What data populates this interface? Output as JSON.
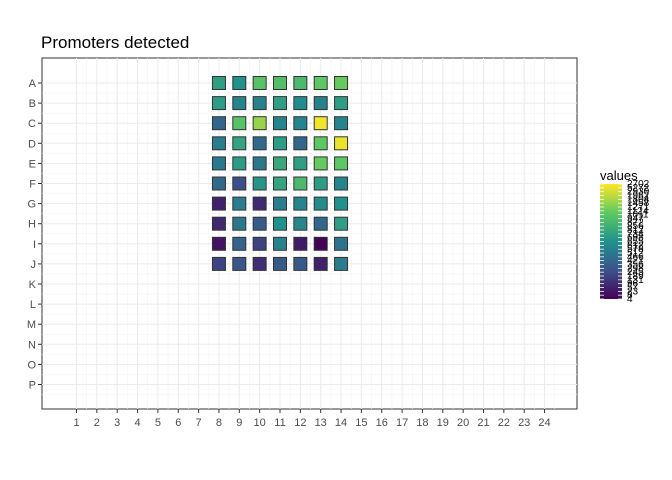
{
  "chart_data": {
    "type": "heatmap",
    "title": "Promoters detected",
    "xlabel": "",
    "ylabel": "",
    "columns": [
      "1",
      "2",
      "3",
      "4",
      "5",
      "6",
      "7",
      "8",
      "9",
      "10",
      "11",
      "12",
      "13",
      "14",
      "15",
      "16",
      "17",
      "18",
      "19",
      "20",
      "21",
      "22",
      "23",
      "24"
    ],
    "rows": [
      "A",
      "B",
      "C",
      "D",
      "E",
      "F",
      "G",
      "H",
      "I",
      "J",
      "K",
      "L",
      "M",
      "N",
      "O",
      "P"
    ],
    "grid": true,
    "legend_position": "right",
    "legend": {
      "title": "values",
      "labels": [
        "2702",
        "5272",
        "2930",
        "1962",
        "1804",
        "1458",
        "1271",
        "1124",
        "1011",
        "947",
        "872",
        "856",
        "812",
        "734",
        "698",
        "655",
        "612",
        "578",
        "512",
        "466",
        "421",
        "356",
        "298",
        "245",
        "189",
        "131",
        "96",
        "57",
        "23",
        "8",
        "4"
      ]
    },
    "color_low": "#440154",
    "color_high": "#FDE725",
    "occupied_rows": [
      "A",
      "B",
      "C",
      "D",
      "E",
      "F",
      "G",
      "H",
      "I",
      "J"
    ],
    "occupied_columns": [
      "8",
      "9",
      "10",
      "11",
      "12",
      "13",
      "14"
    ],
    "cells": [
      [
        "A",
        "8",
        0.56
      ],
      [
        "A",
        "9",
        0.5
      ],
      [
        "A",
        "10",
        0.72
      ],
      [
        "A",
        "11",
        0.7
      ],
      [
        "A",
        "12",
        0.68
      ],
      [
        "A",
        "13",
        0.74
      ],
      [
        "A",
        "14",
        0.76
      ],
      [
        "B",
        "8",
        0.55
      ],
      [
        "B",
        "9",
        0.45
      ],
      [
        "B",
        "10",
        0.44
      ],
      [
        "B",
        "11",
        0.56
      ],
      [
        "B",
        "12",
        0.48
      ],
      [
        "B",
        "13",
        0.44
      ],
      [
        "B",
        "14",
        0.55
      ],
      [
        "C",
        "8",
        0.33
      ],
      [
        "C",
        "9",
        0.72
      ],
      [
        "C",
        "10",
        0.84
      ],
      [
        "C",
        "11",
        0.45
      ],
      [
        "C",
        "12",
        0.45
      ],
      [
        "C",
        "13",
        0.98
      ],
      [
        "C",
        "14",
        0.45
      ],
      [
        "D",
        "8",
        0.42
      ],
      [
        "D",
        "9",
        0.58
      ],
      [
        "D",
        "10",
        0.34
      ],
      [
        "D",
        "11",
        0.55
      ],
      [
        "D",
        "12",
        0.33
      ],
      [
        "D",
        "13",
        0.74
      ],
      [
        "D",
        "14",
        0.97
      ],
      [
        "E",
        "8",
        0.4
      ],
      [
        "E",
        "9",
        0.55
      ],
      [
        "E",
        "10",
        0.4
      ],
      [
        "E",
        "11",
        0.6
      ],
      [
        "E",
        "12",
        0.56
      ],
      [
        "E",
        "13",
        0.76
      ],
      [
        "E",
        "14",
        0.74
      ],
      [
        "F",
        "8",
        0.34
      ],
      [
        "F",
        "9",
        0.24
      ],
      [
        "F",
        "10",
        0.52
      ],
      [
        "F",
        "11",
        0.58
      ],
      [
        "F",
        "12",
        0.68
      ],
      [
        "F",
        "13",
        0.55
      ],
      [
        "F",
        "14",
        0.45
      ],
      [
        "G",
        "8",
        0.1
      ],
      [
        "G",
        "9",
        0.42
      ],
      [
        "G",
        "10",
        0.13
      ],
      [
        "G",
        "11",
        0.42
      ],
      [
        "G",
        "12",
        0.45
      ],
      [
        "G",
        "13",
        0.48
      ],
      [
        "G",
        "14",
        0.5
      ],
      [
        "H",
        "8",
        0.12
      ],
      [
        "H",
        "9",
        0.4
      ],
      [
        "H",
        "10",
        0.28
      ],
      [
        "H",
        "11",
        0.5
      ],
      [
        "H",
        "12",
        0.46
      ],
      [
        "H",
        "13",
        0.33
      ],
      [
        "H",
        "14",
        0.56
      ],
      [
        "I",
        "8",
        0.06
      ],
      [
        "I",
        "9",
        0.32
      ],
      [
        "I",
        "10",
        0.2
      ],
      [
        "I",
        "11",
        0.44
      ],
      [
        "I",
        "12",
        0.08
      ],
      [
        "I",
        "13",
        0.01
      ],
      [
        "I",
        "14",
        0.38
      ],
      [
        "J",
        "8",
        0.2
      ],
      [
        "J",
        "9",
        0.26
      ],
      [
        "J",
        "10",
        0.14
      ],
      [
        "J",
        "11",
        0.28
      ],
      [
        "J",
        "12",
        0.28
      ],
      [
        "J",
        "13",
        0.1
      ],
      [
        "J",
        "14",
        0.42
      ]
    ]
  }
}
